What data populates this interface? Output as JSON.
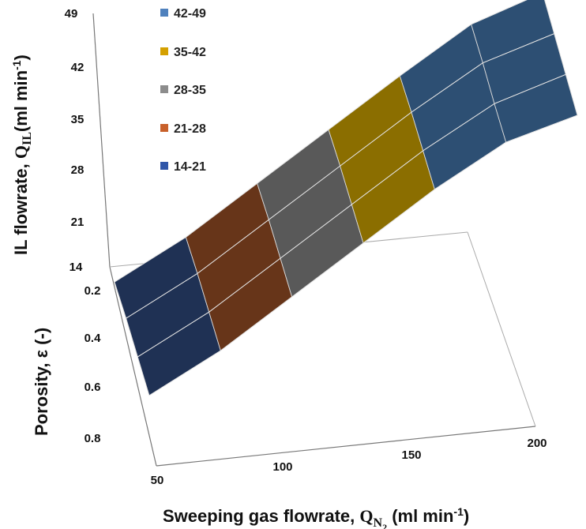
{
  "chart_data": {
    "type": "surface",
    "title": "",
    "x_axis": {
      "label_prefix": "Sweeping gas flowrate, ",
      "label_symbol": "Q",
      "label_subscript": "N",
      "label_subsubscript": "2",
      "label_suffix_open": " (ml min",
      "label_suffix_exp": "-1",
      "label_suffix_close": ")",
      "ticks": [
        "50",
        "100",
        "150",
        "200"
      ],
      "range": [
        50,
        200
      ]
    },
    "y_axis": {
      "label": "Porosity, ε (-)",
      "ticks": [
        "0.2",
        "0.4",
        "0.6",
        "0.8"
      ],
      "range": [
        0.2,
        0.8
      ]
    },
    "z_axis": {
      "label_prefix": "IL flowrate, ",
      "label_symbol": "Q",
      "label_subscript": "IL",
      "label_suffix_open": "(ml min",
      "label_suffix_exp": "-1",
      "label_suffix_close": ")",
      "ticks": [
        "14",
        "21",
        "28",
        "35",
        "42",
        "49"
      ],
      "range": [
        14,
        49
      ]
    },
    "legend": [
      {
        "label": "42-49",
        "color": "#4f81bd"
      },
      {
        "label": "35-42",
        "color": "#d4a000"
      },
      {
        "label": "28-35",
        "color": "#8c8c8c"
      },
      {
        "label": "21-28",
        "color": "#c8602a"
      },
      {
        "label": "14-21",
        "color": "#2f56a8"
      }
    ],
    "legend_position": "top-left",
    "surface_x": [
      50,
      75,
      100,
      125,
      150,
      175,
      200
    ],
    "surface_y": [
      0.2,
      0.4,
      0.6,
      0.8
    ],
    "surface_z": [
      [
        14.5,
        19.5,
        26.5,
        33.5,
        40.5,
        47.0,
        49.0
      ],
      [
        15.5,
        20.5,
        27.5,
        34.5,
        41.5,
        47.5,
        49.0
      ],
      [
        16.0,
        21.0,
        28.0,
        35.0,
        42.0,
        47.5,
        49.0
      ],
      [
        16.5,
        21.5,
        28.5,
        35.5,
        42.5,
        48.0,
        49.0
      ]
    ],
    "band_colors": [
      {
        "min": 14,
        "max": 21,
        "color": "#1f3154"
      },
      {
        "min": 21,
        "max": 28,
        "color": "#673519"
      },
      {
        "min": 28,
        "max": 35,
        "color": "#595959"
      },
      {
        "min": 35,
        "max": 42,
        "color": "#8b6e00"
      },
      {
        "min": 42,
        "max": 49,
        "color": "#2d4f73"
      }
    ]
  }
}
